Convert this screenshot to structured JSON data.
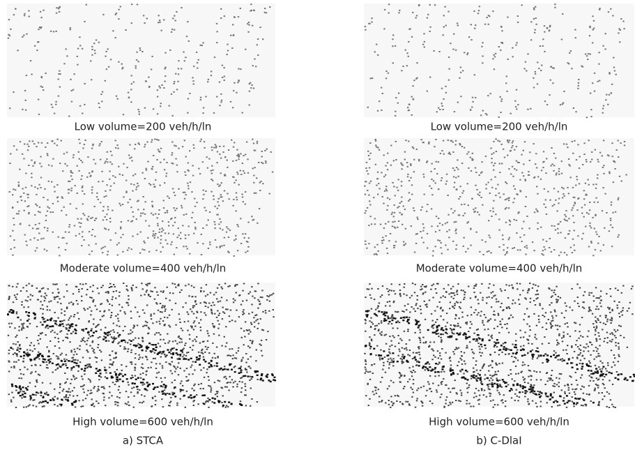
{
  "panels": [
    {
      "label": "a) STCA",
      "captions": [
        "Low volume=200 veh/h/ln",
        "Moderate volume=400 veh/h/ln",
        "High volume=600 veh/h/ln"
      ]
    },
    {
      "label": "b) C-DlaI",
      "captions": [
        "Low volume=200 veh/h/ln",
        "Moderate volume=400 veh/h/ln",
        "High volume=600 veh/h/ln"
      ]
    }
  ]
}
